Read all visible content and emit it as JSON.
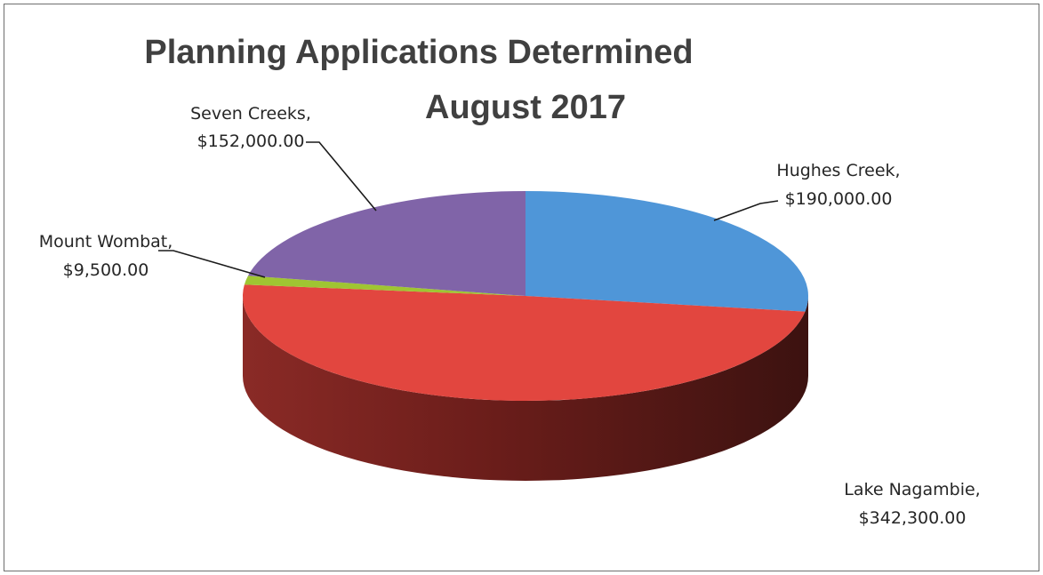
{
  "chart_data": {
    "type": "pie",
    "title": "Planning Applications Determined August 2017",
    "title_lines": [
      "Planning Applications Determined",
      "August 2017"
    ],
    "style": "3d-pie",
    "slices": [
      {
        "name": "Hughes Creek",
        "value": 190000.0,
        "value_label": "$190,000.00",
        "color": "#4f96d8"
      },
      {
        "name": "Lake Nagambie",
        "value": 342300.0,
        "value_label": "$342,300.00",
        "color": "#e2463f"
      },
      {
        "name": "Mount Wombat",
        "value": 9500.0,
        "value_label": "$9,500.00",
        "color": "#9fc532"
      },
      {
        "name": "Seven Creeks",
        "value": 152000.0,
        "value_label": "$152,000.00",
        "color": "#8064a8"
      }
    ],
    "labels": [
      {
        "line1": "Hughes Creek,",
        "line2": "$190,000.00"
      },
      {
        "line1": "Lake Nagambie,",
        "line2": "$342,300.00"
      },
      {
        "line1": "Mount Wombat,",
        "line2": "$9,500.00"
      },
      {
        "line1": "Seven Creeks,",
        "line2": "$152,000.00"
      }
    ]
  }
}
